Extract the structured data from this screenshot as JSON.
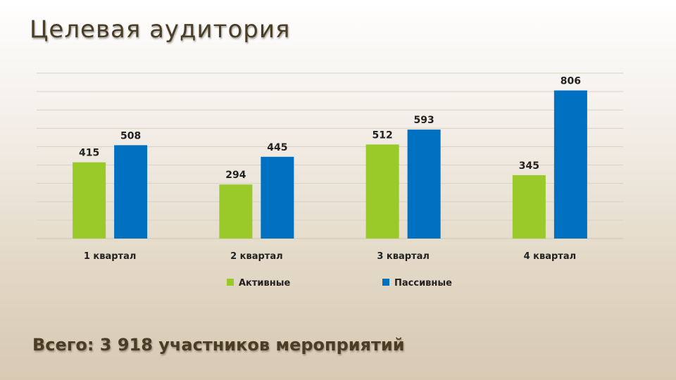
{
  "slide": {
    "title": "Целевая аудитория",
    "footer": "Всего: 3 918 участников мероприятий"
  },
  "chart_data": {
    "type": "bar",
    "categories": [
      "1 квартал",
      "2 квартал",
      "3 квартал",
      "4 квартал"
    ],
    "series": [
      {
        "name": "Активные",
        "values": [
          415,
          294,
          512,
          345
        ],
        "color": "#9ACA2A"
      },
      {
        "name": "Пассивные",
        "values": [
          508,
          445,
          593,
          806
        ],
        "color": "#0070C0"
      }
    ],
    "ylim": [
      0,
      900
    ],
    "grid": true,
    "legend": "bottom",
    "data_labels": true
  }
}
